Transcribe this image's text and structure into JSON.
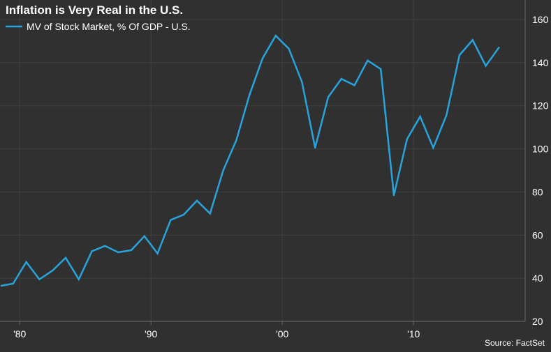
{
  "chart_data": {
    "type": "line",
    "title": "Inflation is Very Real in the U.S.",
    "source": "Source: FactSet",
    "xlabel": "",
    "ylabel": "",
    "xlim": [
      1978.5,
      2018.5
    ],
    "ylim": [
      20,
      160
    ],
    "yticks": [
      20,
      40,
      60,
      80,
      100,
      120,
      140,
      160
    ],
    "xticks": [
      {
        "value": 1980,
        "label": "'80"
      },
      {
        "value": 1990,
        "label": "'90"
      },
      {
        "value": 2000,
        "label": "'00"
      },
      {
        "value": 2010,
        "label": "'10"
      }
    ],
    "grid": true,
    "legend_position": "top-left",
    "y_axis_side": "right",
    "colors": {
      "background": "#303030",
      "series": "#29a3db",
      "grid": "#404040",
      "text": "#ffffff"
    },
    "series": [
      {
        "name": "MV of Stock Market, % Of GDP - U.S.",
        "x": [
          1978.6,
          1979.5,
          1980.5,
          1981.5,
          1982.5,
          1983.5,
          1984.5,
          1985.5,
          1986.5,
          1987.5,
          1988.5,
          1989.5,
          1990.5,
          1991.5,
          1992.5,
          1993.5,
          1994.5,
          1995.5,
          1996.5,
          1997.5,
          1998.5,
          1999.5,
          2000.5,
          2001.5,
          2002.5,
          2003.5,
          2004.5,
          2005.5,
          2006.5,
          2007.5,
          2008.5,
          2009.5,
          2010.5,
          2011.5,
          2012.5,
          2013.5,
          2014.5,
          2015.5,
          2016.5
        ],
        "values": [
          36.5,
          37.5,
          47.5,
          39.5,
          43.5,
          49.5,
          39.5,
          52.5,
          55,
          52,
          53,
          59.5,
          51.5,
          67,
          69.5,
          76,
          70,
          90,
          104,
          125,
          142,
          152.5,
          146.5,
          131,
          100.5,
          124,
          132.5,
          129.5,
          141,
          137,
          78.5,
          104.5,
          115,
          100.5,
          115.5,
          143.5,
          150.5,
          138.5,
          147
        ]
      }
    ]
  }
}
